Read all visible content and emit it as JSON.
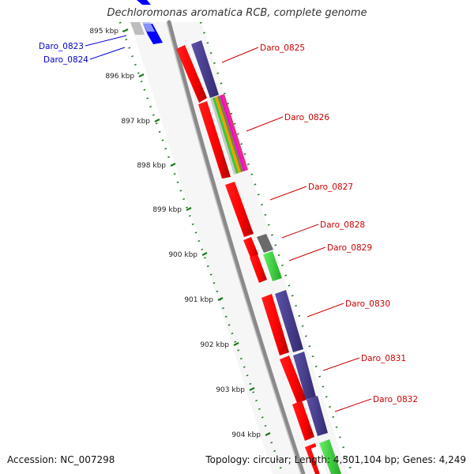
{
  "title": "Dechloromonas aromatica RCB, complete genome",
  "accession": "Accession: NC_007298",
  "summary": "Topology: circular; Length: 4,501,104 bp; Genes: 4,249",
  "colors": {
    "forward_gene": "#ff0000",
    "reverse_gene": "#4a3f8f",
    "highlight_gene": "#0000ff",
    "grey_gene": "#707070",
    "green_gene": "#33cc33",
    "forward_label": "#cc0000",
    "highlight_label": "#0000cc",
    "backbone": "#888888",
    "ticks": "#1f7a1f"
  },
  "scale_ticks": [
    {
      "label": "895 kbp"
    },
    {
      "label": "896 kbp"
    },
    {
      "label": "897 kbp"
    },
    {
      "label": "898 kbp"
    },
    {
      "label": "899 kbp"
    },
    {
      "label": "900 kbp"
    },
    {
      "label": "901 kbp"
    },
    {
      "label": "902 kbp"
    },
    {
      "label": "903 kbp"
    },
    {
      "label": "904 kbp"
    }
  ],
  "genes": [
    {
      "label": "Daro_0823",
      "color": "#0000ff",
      "label_color": "#0000cc"
    },
    {
      "label": "Daro_0824",
      "color": "#0000ff",
      "label_color": "#0000cc"
    },
    {
      "label": "Daro_0825",
      "color": "#4a3f8f",
      "label_color": "#cc0000"
    },
    {
      "label": "Daro_0826",
      "color": "#ff0000",
      "label_color": "#cc0000"
    },
    {
      "label": "Daro_0827",
      "color": "#ff0000",
      "label_color": "#cc0000"
    },
    {
      "label": "Daro_0828",
      "color": "#707070",
      "label_color": "#cc0000"
    },
    {
      "label": "Daro_0829",
      "color": "#33cc33",
      "label_color": "#cc0000"
    },
    {
      "label": "Daro_0830",
      "color": "#4a3f8f",
      "label_color": "#cc0000"
    },
    {
      "label": "Daro_0831",
      "color": "#4a3f8f",
      "label_color": "#cc0000"
    },
    {
      "label": "Daro_0832",
      "color": "#4a3f8f",
      "label_color": "#cc0000"
    }
  ]
}
